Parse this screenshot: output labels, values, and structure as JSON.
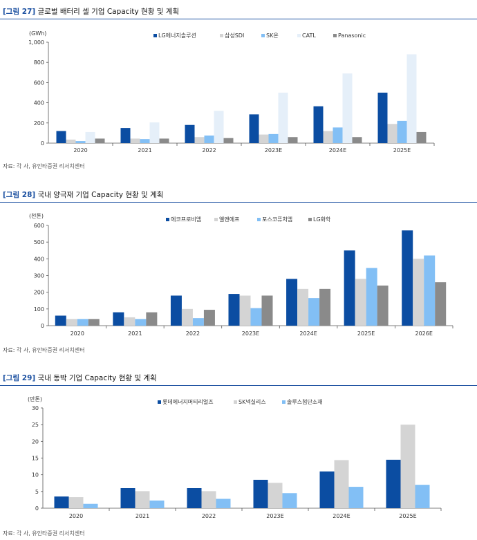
{
  "charts": [
    {
      "fig_label": "[그림 27]",
      "title": "글로벌 배터리 셀 기업 Capacity 현황 및 계획",
      "source": "자료: 각 사, 유안타증권 리서치센터",
      "chart_data": {
        "type": "bar",
        "unit": "(GWh)",
        "categories": [
          "2020",
          "2021",
          "2022",
          "2023E",
          "2024E",
          "2025E"
        ],
        "ylim": [
          0,
          1000
        ],
        "yticks": [
          0,
          200,
          400,
          600,
          800,
          1000
        ],
        "ytick_labels": [
          "0",
          "200",
          "400",
          "600",
          "800",
          "1,000"
        ],
        "legend_position": "top-right",
        "series": [
          {
            "name": "LG에너지솔루션",
            "color": "#0b4da2",
            "values": [
              120,
              150,
              180,
              285,
              365,
              500
            ]
          },
          {
            "name": "삼성SDI",
            "color": "#d4d4d4",
            "values": [
              35,
              45,
              60,
              85,
              120,
              190
            ]
          },
          {
            "name": "SK온",
            "color": "#82bff5",
            "values": [
              20,
              40,
              75,
              90,
              155,
              220
            ]
          },
          {
            "name": "CATL",
            "color": "#e5eff9",
            "values": [
              110,
              205,
              320,
              500,
              690,
              880
            ]
          },
          {
            "name": "Panasonic",
            "color": "#8a8a8a",
            "values": [
              45,
              45,
              50,
              60,
              60,
              110
            ]
          }
        ]
      }
    },
    {
      "fig_label": "[그림 28]",
      "title": "국내 양극재 기업 Capacity 현황 및 계획",
      "source": "자료: 각 사, 유안타증권 리서치센터",
      "chart_data": {
        "type": "bar",
        "unit": "(천톤)",
        "categories": [
          "2020",
          "2021",
          "2022",
          "2023E",
          "2024E",
          "2025E",
          "2026E"
        ],
        "ylim": [
          0,
          600
        ],
        "yticks": [
          0,
          100,
          200,
          300,
          400,
          500,
          600
        ],
        "ytick_labels": [
          "0",
          "100",
          "200",
          "300",
          "400",
          "500",
          "600"
        ],
        "legend_position": "top-center",
        "series": [
          {
            "name": "에코프로비엠",
            "color": "#0b4da2",
            "values": [
              60,
              80,
              180,
              190,
              280,
              450,
              570
            ]
          },
          {
            "name": "엘앤에프",
            "color": "#d4d4d4",
            "values": [
              40,
              50,
              100,
              180,
              220,
              280,
              400
            ]
          },
          {
            "name": "포스코퓨처엠",
            "color": "#82bff5",
            "values": [
              40,
              40,
              45,
              105,
              165,
              345,
              420
            ]
          },
          {
            "name": "LG화학",
            "color": "#8a8a8a",
            "values": [
              40,
              80,
              95,
              180,
              220,
              240,
              260
            ]
          }
        ]
      }
    },
    {
      "fig_label": "[그림 29]",
      "title": "국내 동박 기업 Capacity 현황 및 계획",
      "source": "자료: 각 사, 유안타증권 리서치센터",
      "chart_data": {
        "type": "bar",
        "unit": "(만톤)",
        "categories": [
          "2020",
          "2021",
          "2022",
          "2023E",
          "2024E",
          "2025E"
        ],
        "ylim": [
          0,
          30
        ],
        "yticks": [
          0,
          5,
          10,
          15,
          20,
          25,
          30
        ],
        "ytick_labels": [
          "0",
          "5",
          "10",
          "15",
          "20",
          "25",
          "30"
        ],
        "legend_position": "top-center",
        "series": [
          {
            "name": "롯데에너지머티리얼즈",
            "color": "#0b4da2",
            "values": [
              3.5,
              6,
              6,
              8.5,
              11,
              14.5
            ]
          },
          {
            "name": "SK넥실리스",
            "color": "#d4d4d4",
            "values": [
              3.3,
              5.1,
              5.1,
              7.6,
              14.4,
              25
            ]
          },
          {
            "name": "솔루스첨단소재",
            "color": "#82bff5",
            "values": [
              1.3,
              2.3,
              2.8,
              4.5,
              6.4,
              7
            ]
          }
        ]
      }
    }
  ]
}
